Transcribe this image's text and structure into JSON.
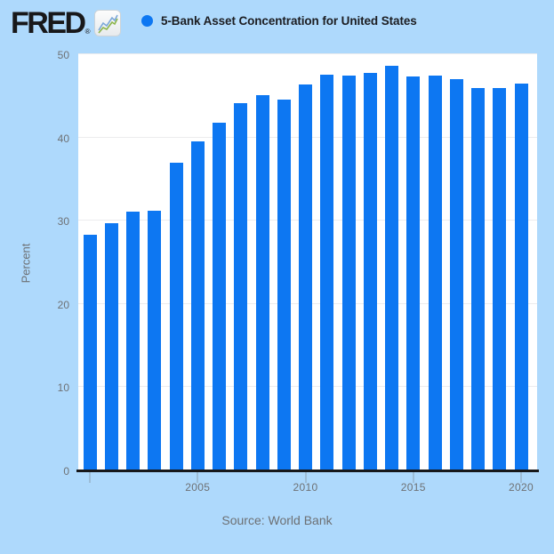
{
  "header": {
    "logo_text": "FRED",
    "logo_registered_mark": "®",
    "series_title": "5-Bank Asset Concentration for United States"
  },
  "footer": {
    "source": "Source: World Bank"
  },
  "colors": {
    "page_background": "#aed9fc",
    "plot_background": "#ffffff",
    "bar": "#0d77f2",
    "legend_dot": "#0d77f2",
    "gridline": "#ececee",
    "axis_line": "#17181a",
    "tick_text": "#6e7174",
    "title_text": "#1c1d21",
    "logo_icon_line_blue": "#7aa7d8",
    "logo_icon_line_green": "#8cb54b"
  },
  "chart_data": {
    "type": "bar",
    "title": "5-Bank Asset Concentration for United States",
    "xlabel": "",
    "ylabel": "Percent",
    "ylim": [
      0,
      50
    ],
    "grid": true,
    "legend_position": "top-left-dot",
    "y_ticks": [
      0,
      10,
      20,
      30,
      40,
      50
    ],
    "x_ticks": [
      {
        "year": 2000,
        "label": ""
      },
      {
        "year": 2005,
        "label": "2005"
      },
      {
        "year": 2010,
        "label": "2010"
      },
      {
        "year": 2015,
        "label": "2015"
      },
      {
        "year": 2020,
        "label": "2020"
      }
    ],
    "categories": [
      2000,
      2001,
      2002,
      2003,
      2004,
      2005,
      2006,
      2007,
      2008,
      2009,
      2010,
      2011,
      2012,
      2013,
      2014,
      2015,
      2016,
      2017,
      2018,
      2019,
      2020
    ],
    "values": [
      28.2,
      29.6,
      31.0,
      31.1,
      36.9,
      39.4,
      41.7,
      44.0,
      45.0,
      44.4,
      46.3,
      47.4,
      47.3,
      47.6,
      48.5,
      47.2,
      47.3,
      46.9,
      45.8,
      45.8,
      46.4
    ],
    "source": "Source: World Bank"
  }
}
